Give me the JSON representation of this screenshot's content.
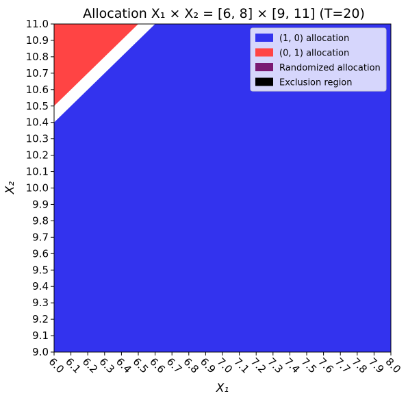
{
  "chart_data": {
    "type": "area",
    "title": "Allocation X₁ × X₂ = [6, 8] × [9, 11] (T=20)",
    "xlabel": "X₁",
    "ylabel": "X₂",
    "xlim": [
      6.0,
      8.0
    ],
    "ylim": [
      9.0,
      11.0
    ],
    "xticks": [
      "6.0",
      "6.1",
      "6.2",
      "6.3",
      "6.4",
      "6.5",
      "6.6",
      "6.7",
      "6.8",
      "6.9",
      "7.0",
      "7.1",
      "7.2",
      "7.3",
      "7.4",
      "7.5",
      "7.6",
      "7.7",
      "7.8",
      "7.9",
      "8.0"
    ],
    "yticks": [
      "9.0",
      "9.1",
      "9.2",
      "9.3",
      "9.4",
      "9.5",
      "9.6",
      "9.7",
      "9.8",
      "9.9",
      "10.0",
      "10.1",
      "10.2",
      "10.3",
      "10.4",
      "10.5",
      "10.6",
      "10.7",
      "10.8",
      "10.9",
      "11.0"
    ],
    "legend_position": "upper-right",
    "grid": false,
    "series": [
      {
        "name": "(1, 0) allocation",
        "color": "#3333ee",
        "polygon": [
          [
            6.0,
            9.0
          ],
          [
            8.0,
            9.0
          ],
          [
            8.0,
            11.0
          ],
          [
            6.6,
            11.0
          ],
          [
            6.0,
            10.4
          ]
        ]
      },
      {
        "name": "(0, 1) allocation",
        "color": "#ff4444",
        "polygon": [
          [
            6.0,
            10.5
          ],
          [
            6.0,
            11.0
          ],
          [
            6.5,
            11.0
          ]
        ]
      },
      {
        "name": "Randomized allocation",
        "color": "#7a1a73",
        "polygon": []
      },
      {
        "name": "Exclusion region",
        "color": "#000000",
        "polygon": []
      }
    ]
  }
}
